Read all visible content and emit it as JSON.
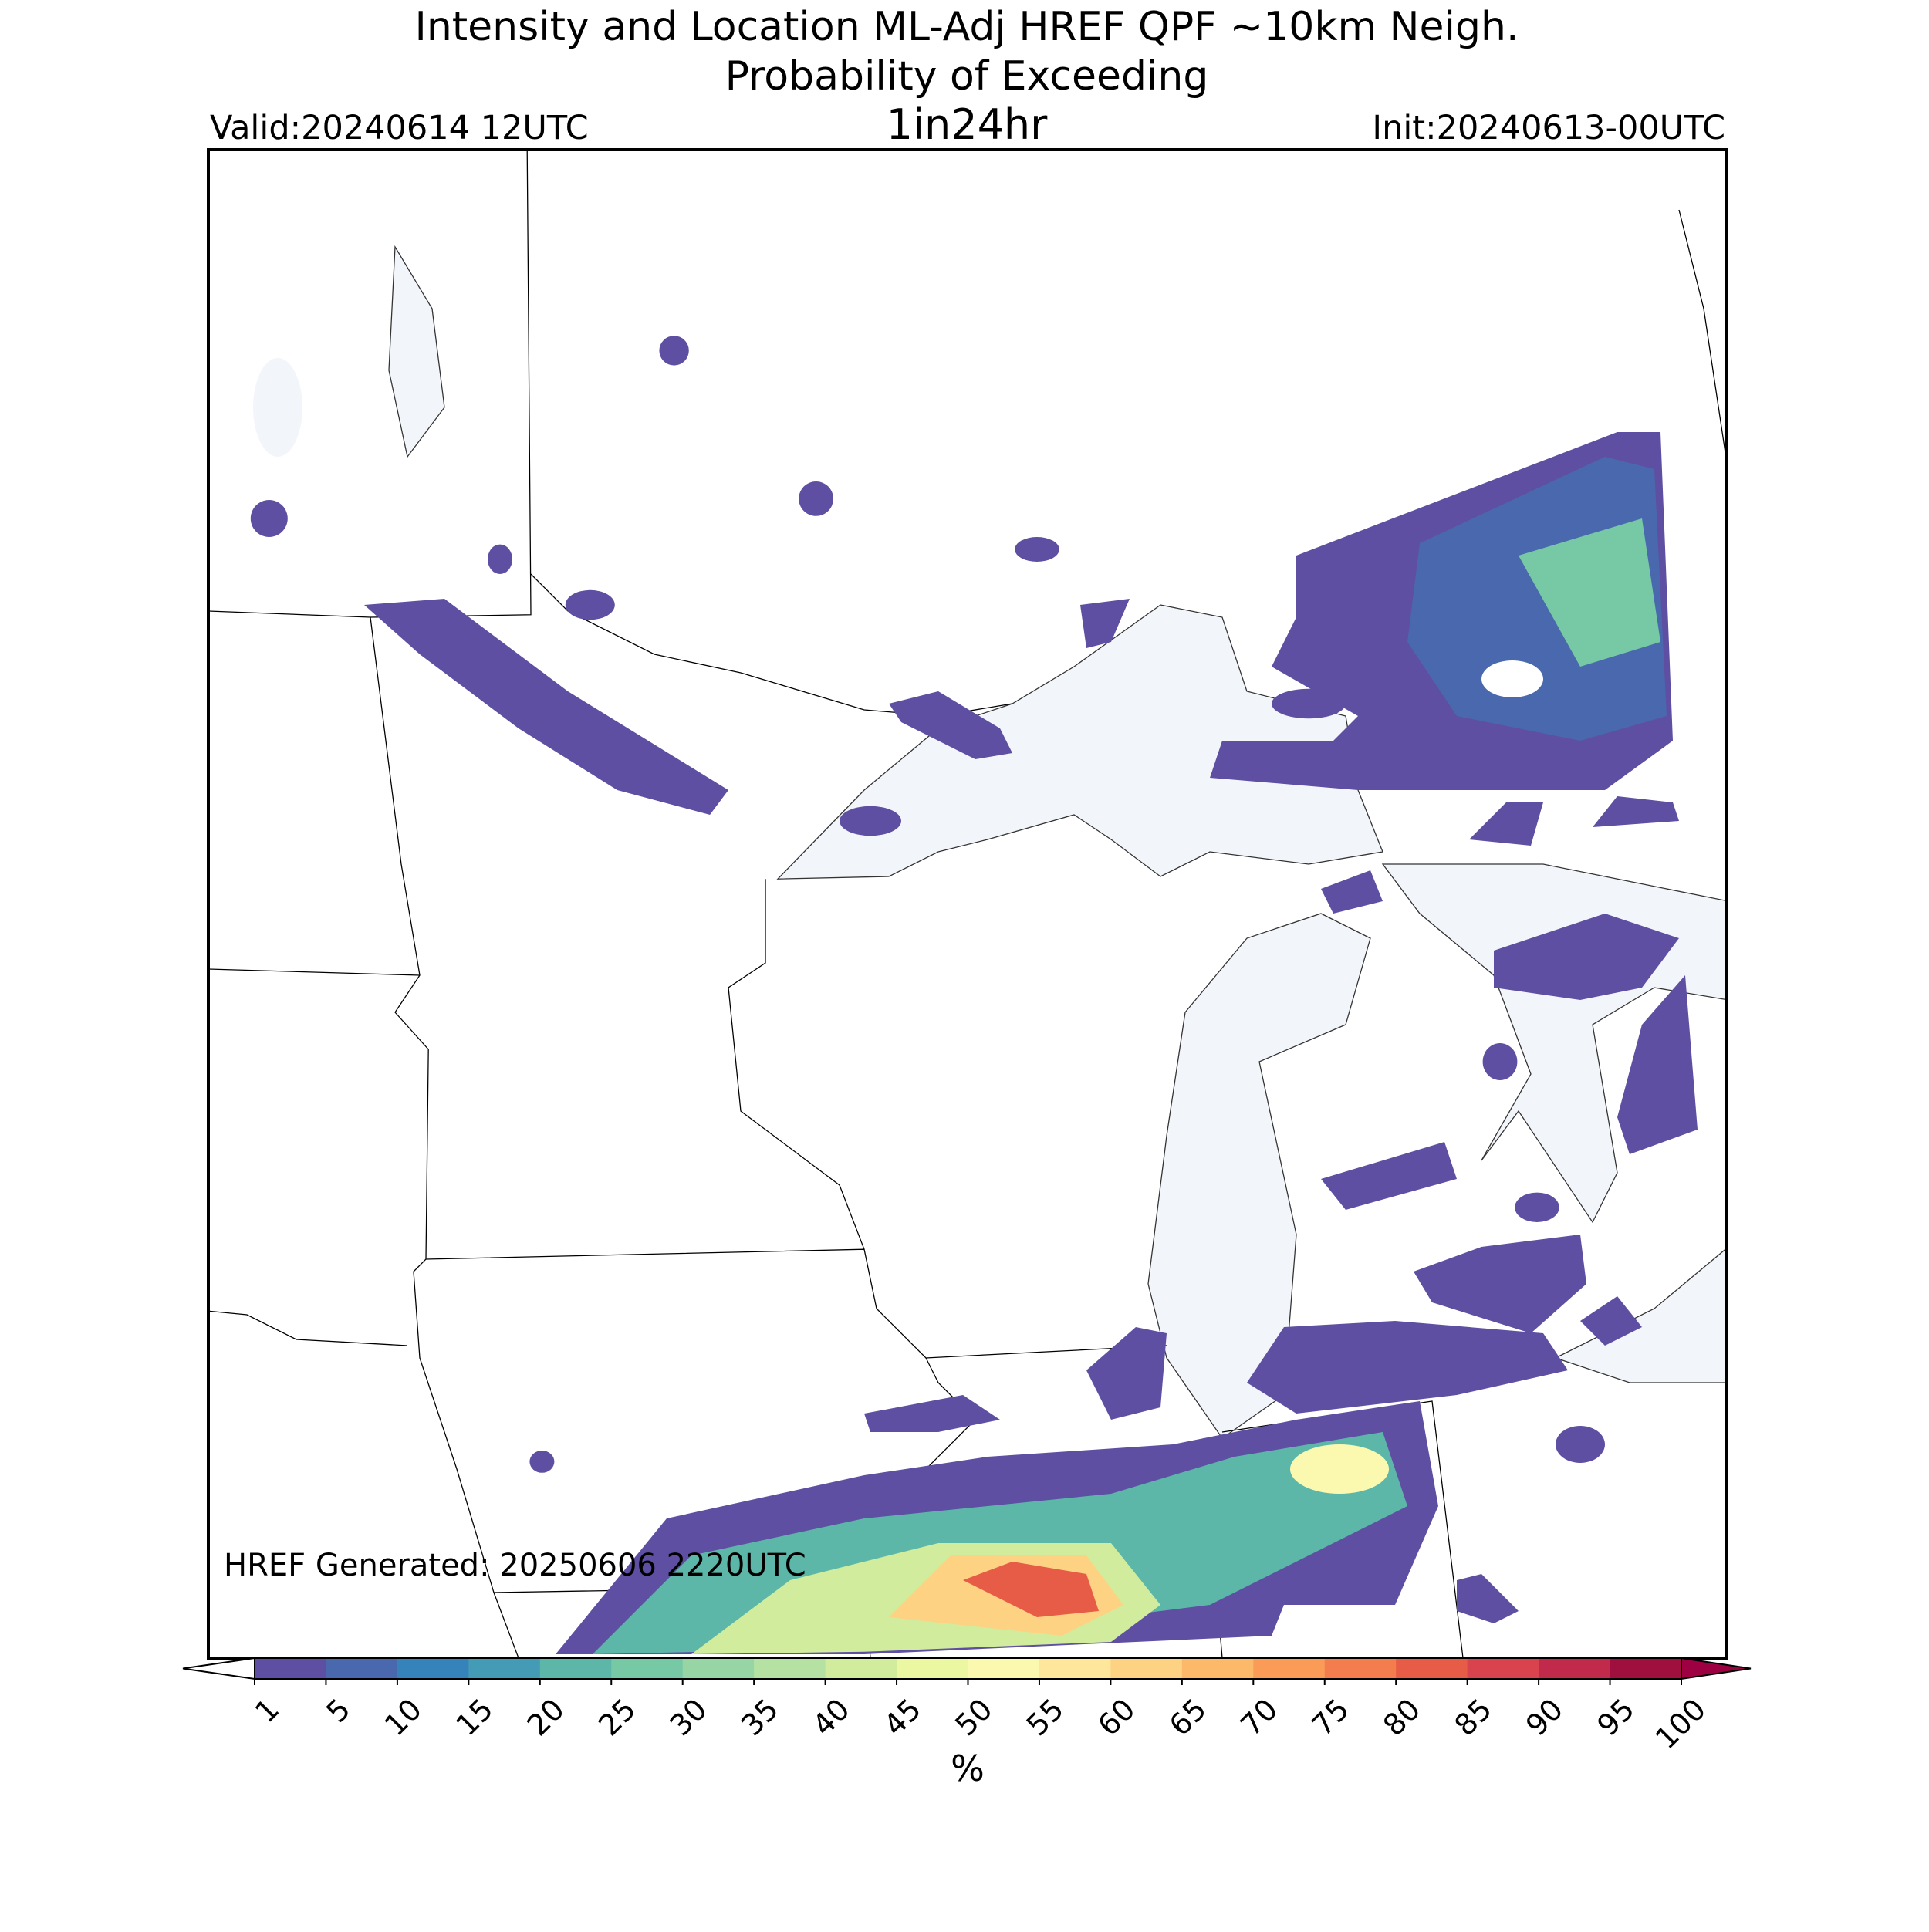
{
  "title": "Intensity and Location ML-Adj HREF QPF ~10km Neigh.",
  "subtitle": "Probability of Exceeding",
  "threshold": "1in24hr",
  "valid": "Valid:20240614 12UTC",
  "init": "Init:20240613-00UTC",
  "generated": "HREF Generated: 20250606 2220UTC",
  "colorbar": {
    "label": "%",
    "ticks": [
      1,
      5,
      10,
      15,
      20,
      25,
      30,
      35,
      40,
      45,
      50,
      55,
      60,
      65,
      70,
      75,
      80,
      85,
      90,
      95,
      100
    ],
    "colors": [
      "#5e4fa2",
      "#4a68ad",
      "#3682ba",
      "#439bb5",
      "#5db7a9",
      "#77c8a4",
      "#98d5a4",
      "#b5e1a2",
      "#d1ec9c",
      "#ecf7a2",
      "#fbf8b0",
      "#fee79a",
      "#fed283",
      "#fdb96a",
      "#fa9c58",
      "#f47d4d",
      "#e65c47",
      "#d8434e",
      "#c12a4a",
      "#a0103f"
    ],
    "under_color": "#ffffff",
    "over_color": "#9e0142"
  }
}
